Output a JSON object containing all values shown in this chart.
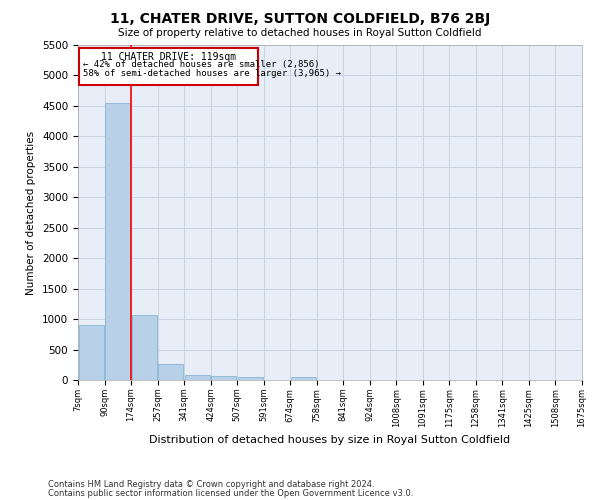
{
  "title": "11, CHATER DRIVE, SUTTON COLDFIELD, B76 2BJ",
  "subtitle": "Size of property relative to detached houses in Royal Sutton Coldfield",
  "xlabel": "Distribution of detached houses by size in Royal Sutton Coldfield",
  "ylabel": "Number of detached properties",
  "bar_values": [
    900,
    4550,
    1060,
    270,
    80,
    70,
    50,
    0,
    50,
    0,
    0,
    0,
    0,
    0,
    0,
    0,
    0,
    0,
    0
  ],
  "bin_labels": [
    "7sqm",
    "90sqm",
    "174sqm",
    "257sqm",
    "341sqm",
    "424sqm",
    "507sqm",
    "591sqm",
    "674sqm",
    "758sqm",
    "841sqm",
    "924sqm",
    "1008sqm",
    "1091sqm",
    "1175sqm",
    "1258sqm",
    "1341sqm",
    "1425sqm",
    "1508sqm",
    "1675sqm"
  ],
  "bar_color": "#b8d0e8",
  "bar_edge_color": "#7aaed0",
  "red_line_x": 1.5,
  "annotation_title": "11 CHATER DRIVE: 119sqm",
  "annotation_line1": "← 42% of detached houses are smaller (2,856)",
  "annotation_line2": "58% of semi-detached houses are larger (3,965) →",
  "annotation_box_color": "#cc0000",
  "ylim": [
    0,
    5500
  ],
  "yticks": [
    0,
    500,
    1000,
    1500,
    2000,
    2500,
    3000,
    3500,
    4000,
    4500,
    5000,
    5500
  ],
  "grid_color": "#c8d4e4",
  "bg_color": "#e8eef8",
  "footer1": "Contains HM Land Registry data © Crown copyright and database right 2024.",
  "footer2": "Contains public sector information licensed under the Open Government Licence v3.0."
}
